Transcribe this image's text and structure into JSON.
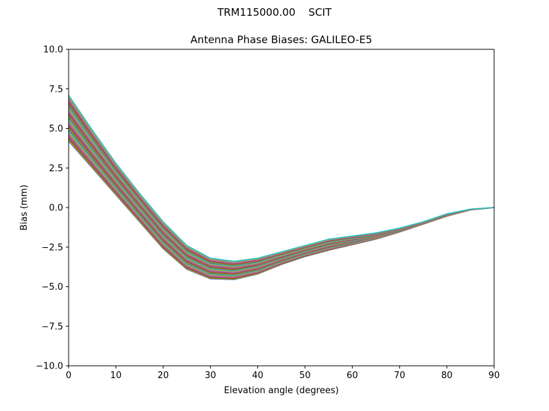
{
  "figure": {
    "suptitle": "TRM115000.00    SCIT"
  },
  "chart_data": {
    "type": "line",
    "title": "Antenna Phase Biases: GALILEO-E5",
    "xlabel": "Elevation angle (degrees)",
    "ylabel": "Bias (mm)",
    "xlim": [
      0,
      90
    ],
    "ylim": [
      -10,
      10
    ],
    "x_ticks": [
      0,
      10,
      20,
      30,
      40,
      50,
      60,
      70,
      80,
      90
    ],
    "x_tick_labels": [
      "0",
      "10",
      "20",
      "30",
      "40",
      "50",
      "60",
      "70",
      "80",
      "90"
    ],
    "y_ticks": [
      10,
      7.5,
      5,
      2.5,
      0,
      -2.5,
      -5,
      -7.5,
      -10
    ],
    "y_tick_labels": [
      "10.0",
      "7.5",
      "5.0",
      "2.5",
      "0.0",
      "−2.5",
      "−5.0",
      "−7.5",
      "−10.0"
    ],
    "grid": false,
    "legend": "none",
    "x": [
      0,
      5,
      10,
      15,
      20,
      25,
      30,
      35,
      40,
      45,
      50,
      55,
      60,
      65,
      70,
      75,
      80,
      85,
      90
    ],
    "envelope": {
      "upper": [
        7.1,
        4.9,
        2.8,
        0.9,
        -0.9,
        -2.4,
        -3.2,
        -3.4,
        -3.2,
        -2.8,
        -2.4,
        -2.0,
        -1.8,
        -1.6,
        -1.3,
        -0.9,
        -0.4,
        -0.1,
        0.0
      ],
      "lower": [
        4.2,
        2.5,
        0.8,
        -0.9,
        -2.6,
        -3.9,
        -4.5,
        -4.55,
        -4.2,
        -3.6,
        -3.1,
        -2.7,
        -2.35,
        -2.0,
        -1.55,
        -1.05,
        -0.55,
        -0.15,
        0.0
      ]
    },
    "series_count": 40,
    "series_colors": [
      "#1f77b4",
      "#ff7f0e",
      "#2ca02c",
      "#d62728",
      "#9467bd",
      "#8c564b",
      "#e377c2",
      "#7f7f7f",
      "#bcbd22",
      "#17becf"
    ]
  }
}
